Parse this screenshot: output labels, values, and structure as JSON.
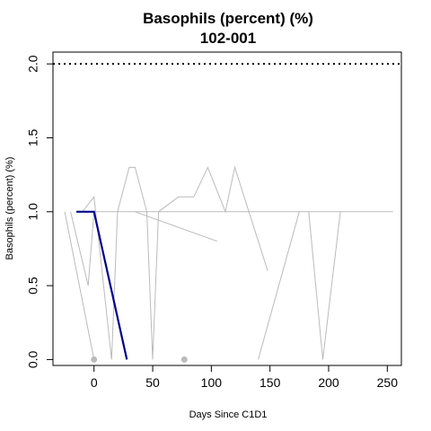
{
  "chart_data": {
    "type": "line",
    "title": "Basophils (percent) (%)",
    "subtitle": "102-001",
    "xlabel": "Days Since C1D1",
    "ylabel": "Basophils (percent) (%)",
    "xlim": [
      -35,
      262
    ],
    "ylim": [
      -0.04,
      2.08
    ],
    "x_ticks": [
      0,
      50,
      100,
      150,
      200,
      250
    ],
    "y_ticks": [
      0.0,
      0.5,
      1.0,
      1.5,
      2.0
    ],
    "y_tick_labels": [
      "0.0",
      "0.5",
      "1.0",
      "1.5",
      "2.0"
    ],
    "grid": false,
    "reference_line": {
      "y": 2.0,
      "style": "dotted",
      "color": "#000000"
    },
    "colors": {
      "background_series": "#bbbbbb",
      "highlight_series": "#00008b",
      "reference": "#000000"
    },
    "background_series": [
      {
        "points": [
          [
            -25,
            1.0
          ],
          [
            0,
            0.0
          ]
        ]
      },
      {
        "points": [
          [
            -20,
            1.0
          ],
          [
            -5,
            0.5
          ],
          [
            0,
            1.0
          ],
          [
            255,
            1.0
          ]
        ]
      },
      {
        "points": [
          [
            -10,
            1.0
          ],
          [
            0,
            1.1
          ],
          [
            15,
            0.0
          ],
          [
            20,
            1.0
          ]
        ]
      },
      {
        "points": [
          [
            20,
            1.0
          ],
          [
            30,
            1.3
          ],
          [
            35,
            1.3
          ],
          [
            45,
            1.0
          ],
          [
            50,
            0.0
          ],
          [
            55,
            1.0
          ],
          [
            72,
            1.1
          ],
          [
            85,
            1.1
          ],
          [
            97,
            1.3
          ],
          [
            112,
            1.0
          ],
          [
            120,
            1.3
          ],
          [
            148,
            0.6
          ]
        ]
      },
      {
        "points": [
          [
            35,
            1.0
          ],
          [
            105,
            0.8
          ]
        ]
      },
      {
        "points": [
          [
            140,
            0.0
          ],
          [
            175,
            1.0
          ]
        ]
      },
      {
        "points": [
          [
            183,
            1.0
          ],
          [
            195,
            0.0
          ],
          [
            210,
            1.0
          ]
        ]
      }
    ],
    "highlight_series": {
      "points": [
        [
          -15,
          1.0
        ],
        [
          0,
          1.0
        ],
        [
          28,
          0.0
        ]
      ]
    },
    "markers": [
      {
        "x": 0,
        "y": 0.0
      },
      {
        "x": 77,
        "y": 0.0
      }
    ]
  }
}
